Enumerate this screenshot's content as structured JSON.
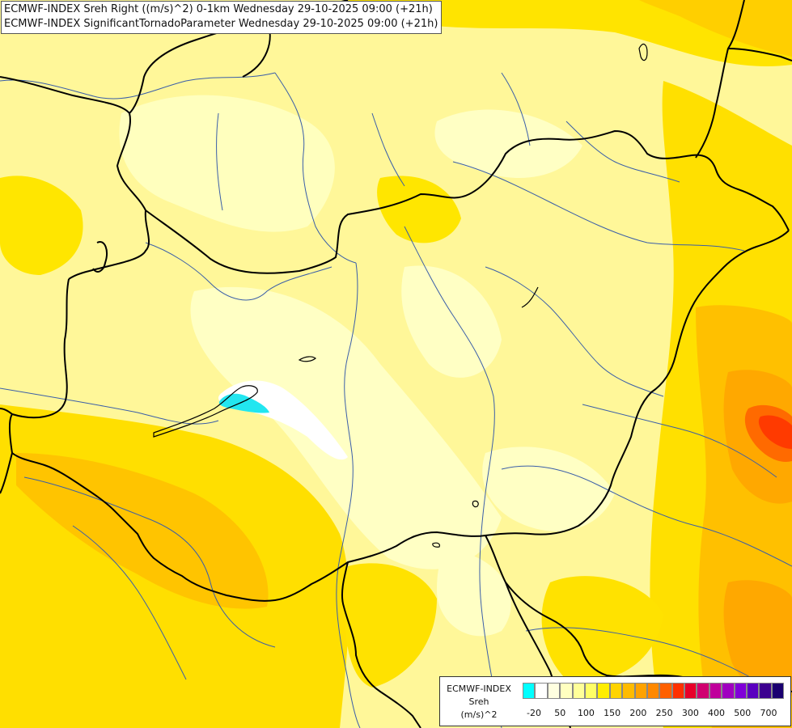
{
  "header": {
    "line1": "ECMWF-INDEX Sreh Right ((m/s)^2) 0-1km Wednesday 29-10-2025 09:00 (+21h)",
    "line2": "ECMWF-INDEX SignificantTornadoParameter Wednesday 29-10-2025 09:00 (+21h)"
  },
  "legend": {
    "model": "ECMWF-INDEX",
    "param": "Sreh",
    "unit": "(m/s)^2",
    "colors": [
      "#00ffff",
      "#ffffff",
      "#ffffe0",
      "#ffffc0",
      "#ffff99",
      "#ffff66",
      "#ffee00",
      "#ffd400",
      "#ffbb00",
      "#ffa200",
      "#ff8800",
      "#ff6000",
      "#ff3000",
      "#e8002a",
      "#d00070",
      "#c0009c",
      "#a000c0",
      "#8000d8",
      "#5a00c0",
      "#3c0090",
      "#1a0070"
    ],
    "ticks": [
      "-20",
      "50",
      "100",
      "150",
      "200",
      "250",
      "300",
      "400",
      "500",
      "700"
    ]
  },
  "colors": {
    "background": "#fff89a",
    "border": "#000000",
    "river": "#3a5ea8"
  }
}
